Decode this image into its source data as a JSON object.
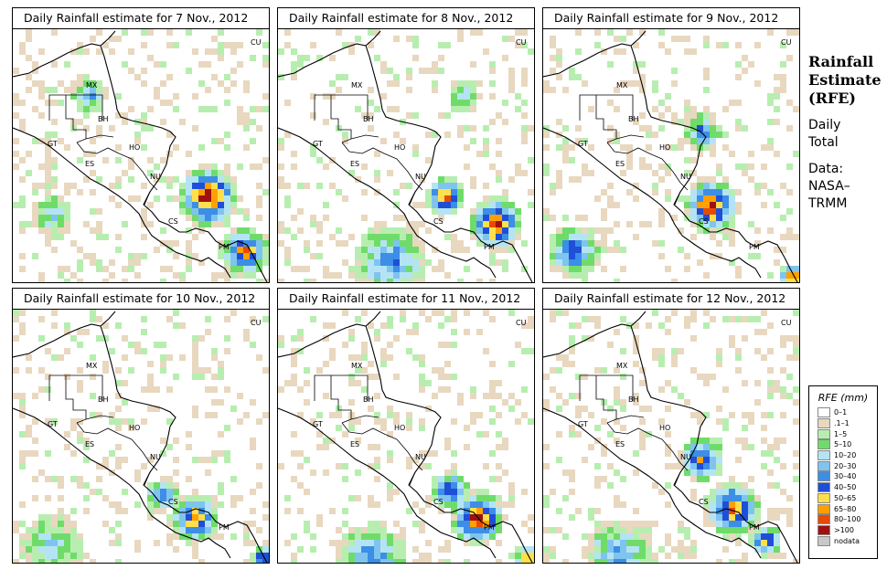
{
  "panels": [
    {
      "title": "Daily Rainfall estimate for  7 Nov., 2012"
    },
    {
      "title": "Daily Rainfall estimate for  8 Nov., 2012"
    },
    {
      "title": "Daily Rainfall estimate for  9 Nov., 2012"
    },
    {
      "title": "Daily Rainfall estimate for  10 Nov., 2012"
    },
    {
      "title": "Daily Rainfall estimate for  11 Nov., 2012"
    },
    {
      "title": "Daily Rainfall estimate for  12 Nov., 2012"
    }
  ],
  "country_labels": [
    "MX",
    "BH",
    "GT",
    "HO",
    "ES",
    "NU",
    "CS",
    "PM",
    "CU"
  ],
  "sidebar": {
    "heading1": "Rainfall",
    "heading2": "Estimate",
    "heading3": "(RFE)",
    "sub1": "Daily",
    "sub2": "Total",
    "src1": "Data:",
    "src2": "NASA–",
    "src3": "TRMM"
  },
  "legend": {
    "title": "RFE (mm)",
    "items": [
      {
        "label": "0–1",
        "color": "#ffffff"
      },
      {
        "label": ".1–1",
        "color": "#e8d8bf"
      },
      {
        "label": "1–5",
        "color": "#b7eeb0"
      },
      {
        "label": "5–10",
        "color": "#6fdc6a"
      },
      {
        "label": "10–20",
        "color": "#b4e4f4"
      },
      {
        "label": "20–30",
        "color": "#7fc4ef"
      },
      {
        "label": "30–40",
        "color": "#3c8ee6"
      },
      {
        "label": "40–50",
        "color": "#1f4fd6"
      },
      {
        "label": "50–65",
        "color": "#ffe04a"
      },
      {
        "label": "65–80",
        "color": "#ffa000"
      },
      {
        "label": "80–100",
        "color": "#e84a00"
      },
      {
        "label": ">100",
        "color": "#a01010"
      },
      {
        "label": "nodata",
        "color": "#c8c8c8"
      }
    ]
  }
}
